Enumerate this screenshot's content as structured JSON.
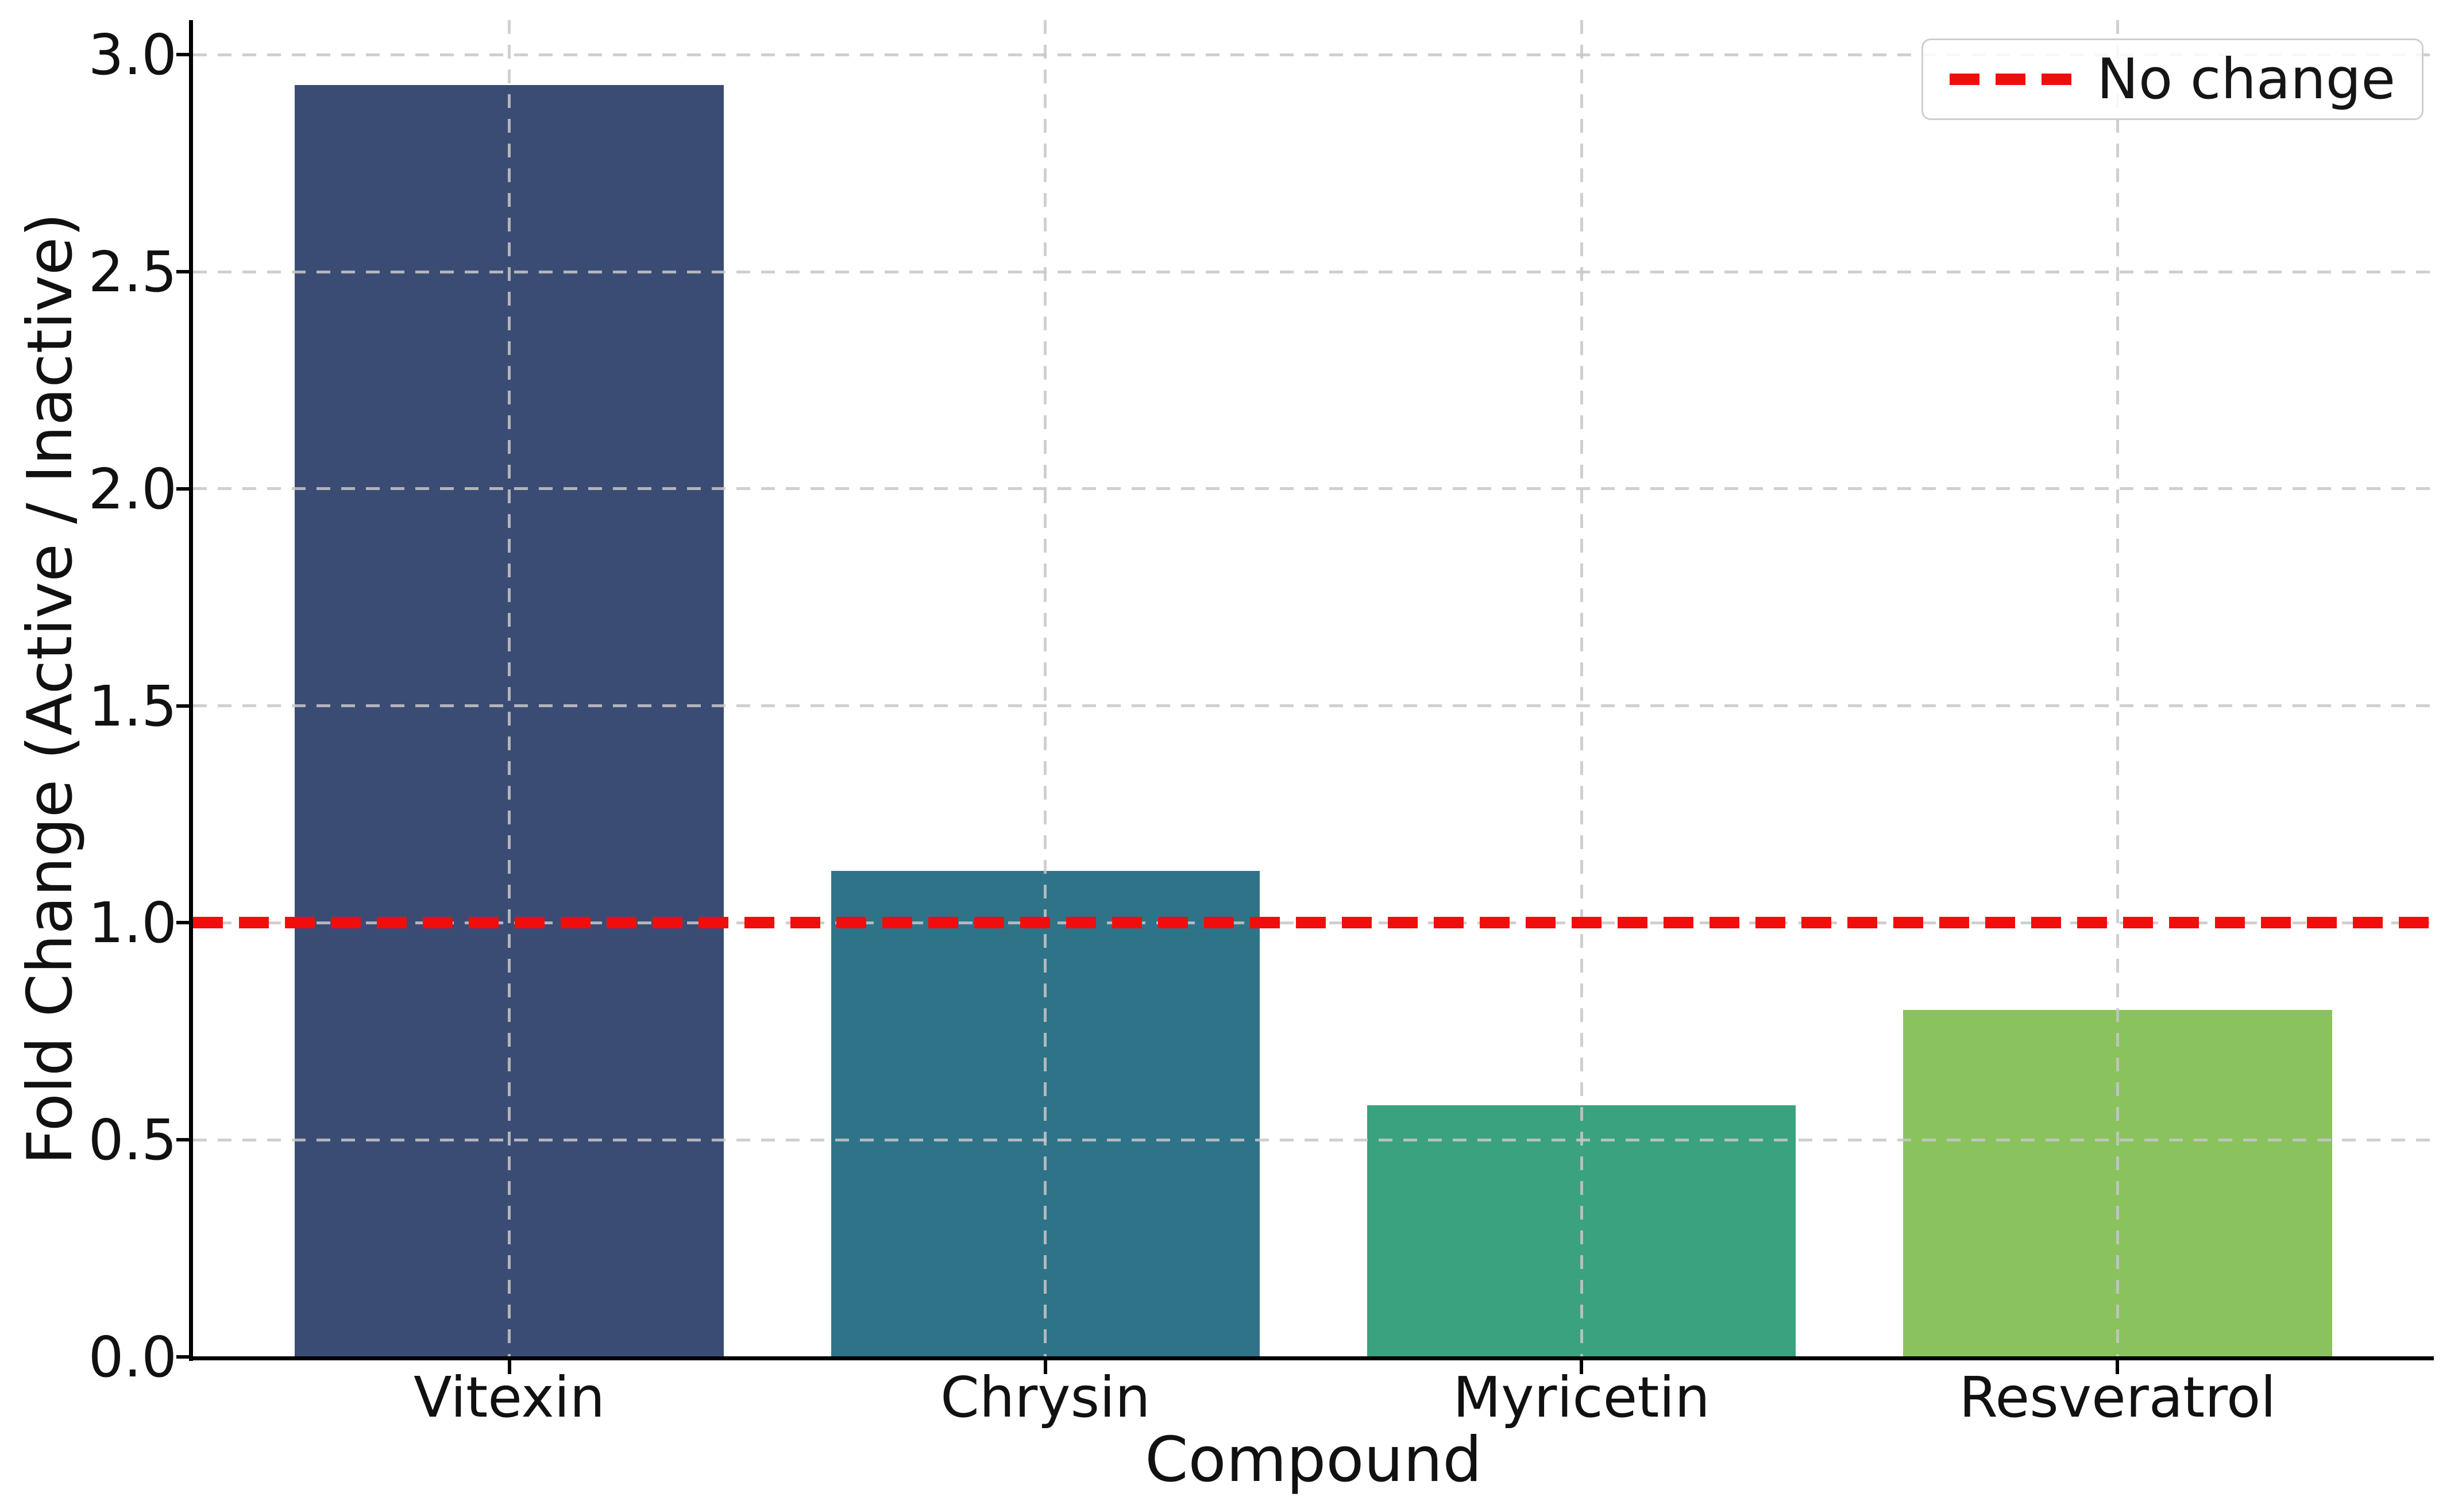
{
  "figure": {
    "background": "#ffffff"
  },
  "chart_data": {
    "type": "bar",
    "title": "",
    "categories": [
      "Vitexin",
      "Chrysin",
      "Myricetin",
      "Resveratrol"
    ],
    "values": [
      2.93,
      1.12,
      0.58,
      0.8
    ],
    "bar_colors": [
      "#3b4c74",
      "#2f7389",
      "#3aa27e",
      "#8ac35e"
    ],
    "xlabel": "Compound",
    "ylabel": "Fold Change (Active / Inactive)",
    "ylim": [
      0,
      3.08
    ],
    "yticks": [
      0.0,
      0.5,
      1.0,
      1.5,
      2.0,
      2.5,
      3.0
    ],
    "ytick_labels": [
      "0.0",
      "0.5",
      "1.0",
      "1.5",
      "2.0",
      "2.5",
      "3.0"
    ],
    "grid": {
      "style": "dashed",
      "color": "#c7c7c7",
      "axes": "both",
      "drawn_over_bars": true
    },
    "reference_line": {
      "value": 1.0,
      "style": "dashed",
      "color": "#f20d0d",
      "label": "No change"
    },
    "legend": {
      "position": "upper right",
      "entries": [
        {
          "label": "No change",
          "color": "#f20d0d",
          "line_style": "dashed"
        }
      ]
    },
    "spines": [
      "left",
      "bottom"
    ]
  }
}
